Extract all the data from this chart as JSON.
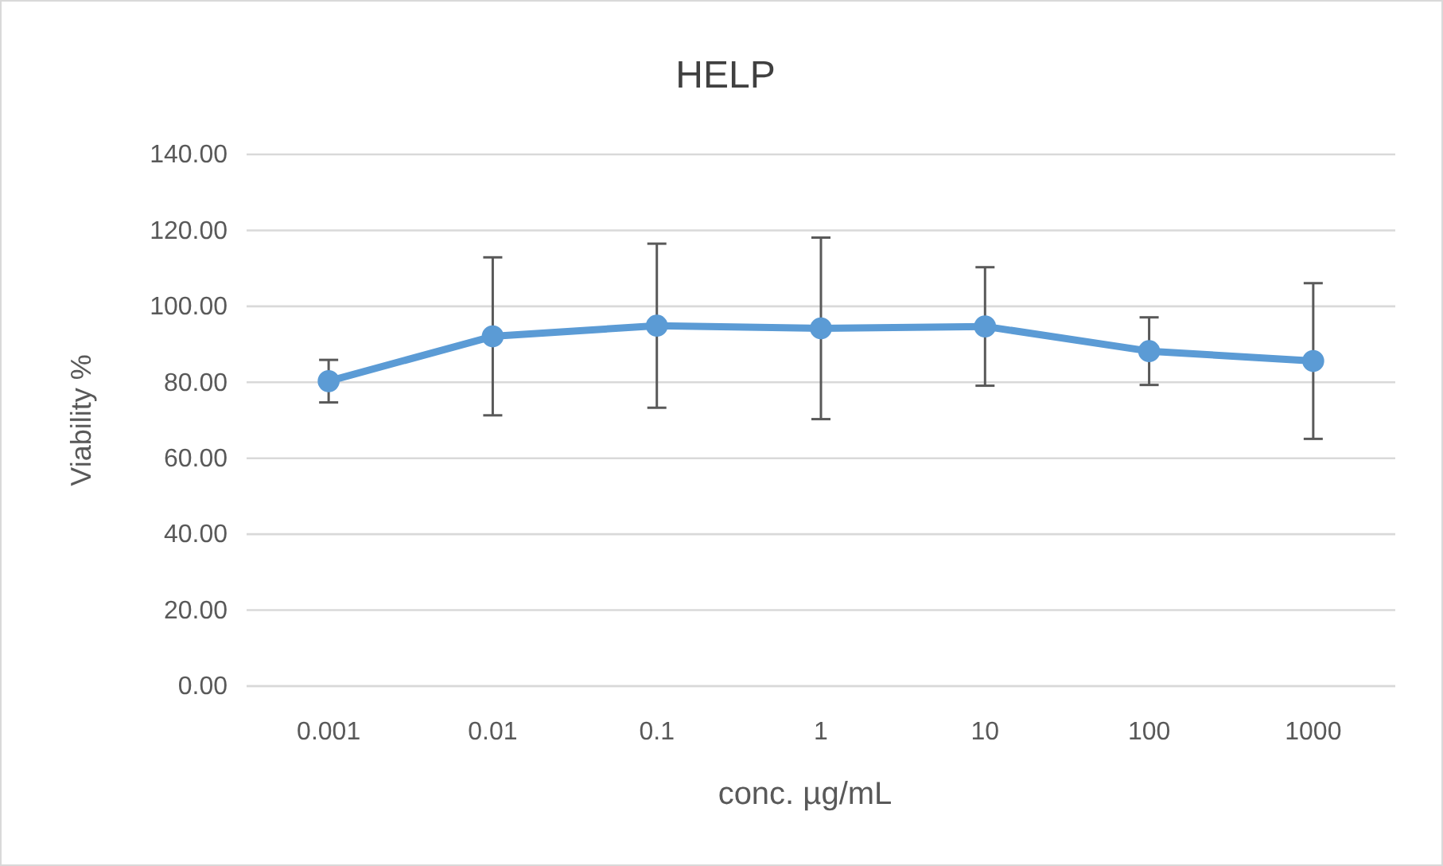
{
  "chart_data": {
    "type": "line",
    "title": "HELP",
    "xlabel": "conc. µg/mL",
    "ylabel": "Viability %",
    "categories": [
      "0.001",
      "0.01",
      "0.1",
      "1",
      "10",
      "100",
      "1000"
    ],
    "series": [
      {
        "color": "#5b9bd5",
        "values": [
          80.3,
          92.1,
          94.9,
          94.2,
          94.7,
          88.2,
          85.6
        ],
        "errors": [
          5.6,
          20.8,
          21.6,
          23.9,
          15.6,
          8.9,
          20.5
        ]
      }
    ],
    "ylim": [
      0,
      140
    ],
    "yticks": [
      {
        "value": 0,
        "label": "0.00"
      },
      {
        "value": 20,
        "label": "20.00"
      },
      {
        "value": 40,
        "label": "40.00"
      },
      {
        "value": 60,
        "label": "60.00"
      },
      {
        "value": 80,
        "label": "80.00"
      },
      {
        "value": 100,
        "label": "100.00"
      },
      {
        "value": 120,
        "label": "120.00"
      },
      {
        "value": 140,
        "label": "140.00"
      }
    ],
    "grid": "y",
    "marker": "circle",
    "line_style": "solid"
  }
}
